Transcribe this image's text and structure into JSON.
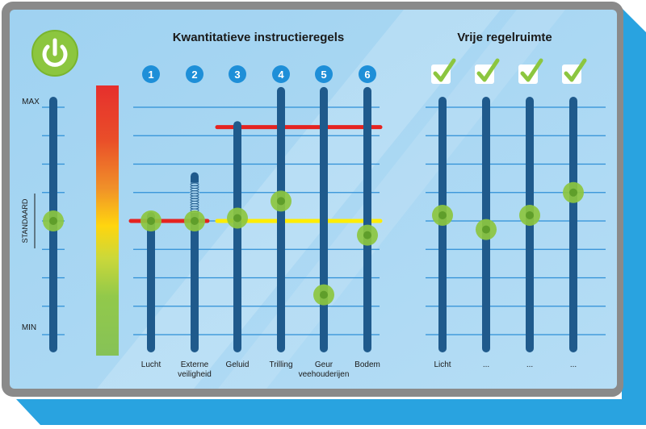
{
  "power_button": {
    "icon": "power-icon",
    "color": "#8cc63f"
  },
  "titles": {
    "quantitative": "Kwantitatieve instructieregels",
    "free": "Vrije regelruimte"
  },
  "scale": {
    "max_label": "MAX",
    "standard_label": "STANDAARD",
    "min_label": "MIN",
    "levels": 9,
    "standard_level": 4
  },
  "rule_badges": [
    "1",
    "2",
    "3",
    "4",
    "5",
    "6"
  ],
  "quantitative_sliders": [
    {
      "label": "Lucht",
      "knob_level": 4.0,
      "max_level": 4.0,
      "spring": false
    },
    {
      "label": "Externe\nveiligheid",
      "knob_level": 4.0,
      "max_level": 5.4,
      "spring": true
    },
    {
      "label": "Geluid",
      "knob_level": 4.1,
      "max_level": 7.2,
      "spring": false
    },
    {
      "label": "Trilling",
      "knob_level": 4.7,
      "max_level": 8.4,
      "spring": false
    },
    {
      "label": "Geur\nveehouderijen",
      "knob_level": 1.4,
      "max_level": 8.4,
      "spring": false
    },
    {
      "label": "Bodem",
      "knob_level": 3.5,
      "max_level": 8.4,
      "spring": false
    }
  ],
  "limit_lines": [
    {
      "color": "red",
      "level": 7.3,
      "from_slider": 3,
      "to_slider": 6
    },
    {
      "color": "red",
      "level": 4.0,
      "from_slider": 1,
      "to_slider": 2
    },
    {
      "color": "yellow",
      "level": 4.0,
      "from_slider": 3,
      "to_slider": 6
    }
  ],
  "free_sliders": [
    {
      "label": "Licht",
      "knob_level": 4.2,
      "checked": true
    },
    {
      "label": "...",
      "knob_level": 3.7,
      "checked": true
    },
    {
      "label": "...",
      "knob_level": 4.2,
      "checked": true
    },
    {
      "label": "...",
      "knob_level": 5.0,
      "checked": true
    }
  ],
  "colors": {
    "panel": "#a9d6f2",
    "frame": "#8a8a8a",
    "track": "#1f5a8c",
    "gridline": "#2e8fd6",
    "badge": "#1e8fd8",
    "knob": "#8cc63f",
    "check": "#8cc63f",
    "red_line": "#e52320",
    "yellow_line": "#ffed00"
  }
}
